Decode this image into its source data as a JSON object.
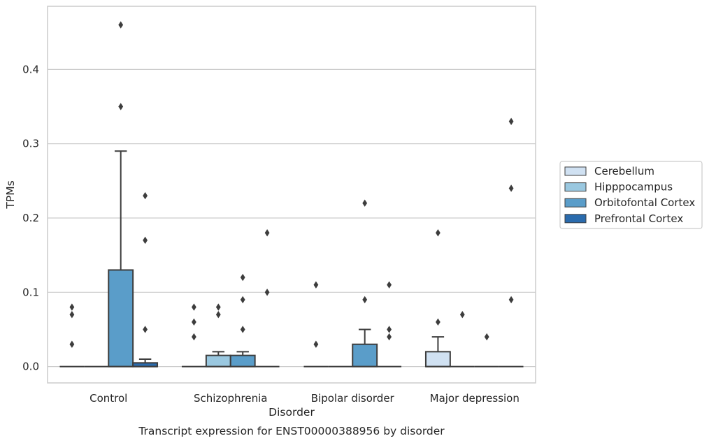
{
  "chart_data": {
    "type": "boxplot",
    "xlabel": "Disorder",
    "ylabel": "TPMs",
    "caption": "Transcript expression for ENST00000388956 by disorder",
    "ylim": [
      -0.022,
      0.485
    ],
    "yticks": [
      0.0,
      0.1,
      0.2,
      0.3,
      0.4
    ],
    "ytick_labels": [
      "0.0",
      "0.1",
      "0.2",
      "0.3",
      "0.4"
    ],
    "grid": "horizontal",
    "legend_position": "right",
    "categories": [
      "Control",
      "Schizophrenia",
      "Bipolar disorder",
      "Major depression"
    ],
    "series": [
      {
        "name": "Cerebellum",
        "color": "#d0e1f2",
        "boxes": [
          {
            "q1": 0,
            "median": 0,
            "q3": 0,
            "whisker_low": 0,
            "whisker_high": 0,
            "outliers": [
              0.03,
              0.07,
              0.08
            ]
          },
          {
            "q1": 0,
            "median": 0,
            "q3": 0,
            "whisker_low": 0,
            "whisker_high": 0,
            "outliers": [
              0.04,
              0.06,
              0.08
            ]
          },
          {
            "q1": 0,
            "median": 0,
            "q3": 0,
            "whisker_low": 0,
            "whisker_high": 0,
            "outliers": [
              0.03,
              0.11
            ]
          },
          {
            "q1": 0,
            "median": 0,
            "q3": 0.02,
            "whisker_low": 0,
            "whisker_high": 0.04,
            "outliers": [
              0.06,
              0.18
            ]
          }
        ]
      },
      {
        "name": "Hipppocampus",
        "color": "#9ac8e0",
        "boxes": [
          {
            "q1": 0,
            "median": 0,
            "q3": 0,
            "whisker_low": 0,
            "whisker_high": 0,
            "outliers": []
          },
          {
            "q1": 0,
            "median": 0,
            "q3": 0.015,
            "whisker_low": 0,
            "whisker_high": 0.02,
            "outliers": [
              0.07,
              0.08
            ]
          },
          {
            "q1": 0,
            "median": 0,
            "q3": 0,
            "whisker_low": 0,
            "whisker_high": 0,
            "outliers": []
          },
          {
            "q1": 0,
            "median": 0,
            "q3": 0,
            "whisker_low": 0,
            "whisker_high": 0,
            "outliers": [
              0.07
            ]
          }
        ]
      },
      {
        "name": "Orbitofontal Cortex",
        "color": "#5a9dc9",
        "boxes": [
          {
            "q1": 0,
            "median": 0,
            "q3": 0.13,
            "whisker_low": 0,
            "whisker_high": 0.29,
            "outliers": [
              0.35,
              0.46
            ]
          },
          {
            "q1": 0,
            "median": 0,
            "q3": 0.015,
            "whisker_low": 0,
            "whisker_high": 0.02,
            "outliers": [
              0.05,
              0.09,
              0.12
            ]
          },
          {
            "q1": 0,
            "median": 0,
            "q3": 0.03,
            "whisker_low": 0,
            "whisker_high": 0.05,
            "outliers": [
              0.09,
              0.22
            ]
          },
          {
            "q1": 0,
            "median": 0,
            "q3": 0,
            "whisker_low": 0,
            "whisker_high": 0,
            "outliers": [
              0.04
            ]
          }
        ]
      },
      {
        "name": "Prefrontal Cortex",
        "color": "#2a6bad",
        "boxes": [
          {
            "q1": 0,
            "median": 0,
            "q3": 0.005,
            "whisker_low": 0,
            "whisker_high": 0.01,
            "outliers": [
              0.05,
              0.17,
              0.23
            ]
          },
          {
            "q1": 0,
            "median": 0,
            "q3": 0,
            "whisker_low": 0,
            "whisker_high": 0,
            "outliers": [
              0.1,
              0.18
            ]
          },
          {
            "q1": 0,
            "median": 0,
            "q3": 0,
            "whisker_low": 0,
            "whisker_high": 0,
            "outliers": [
              0.04,
              0.05,
              0.11
            ]
          },
          {
            "q1": 0,
            "median": 0,
            "q3": 0,
            "whisker_low": 0,
            "whisker_high": 0,
            "outliers": [
              0.09,
              0.24,
              0.33
            ]
          }
        ]
      }
    ]
  }
}
